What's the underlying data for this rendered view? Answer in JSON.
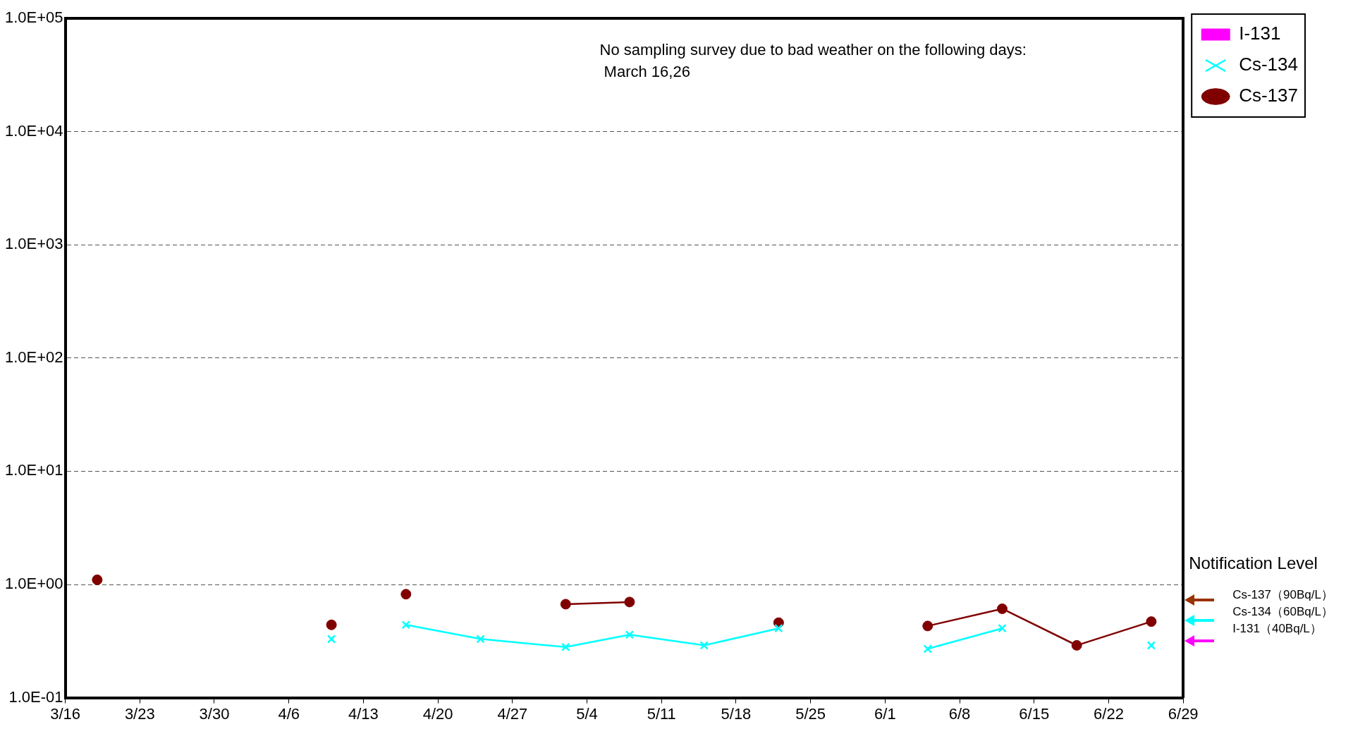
{
  "chart_data": {
    "type": "line",
    "x": [
      "--03-19",
      "--03-26",
      "--04-03",
      "--04-10",
      "--04-13",
      "--04-17",
      "--04-24",
      "--05-02",
      "--05-08",
      "--05-15",
      "--05-22",
      "--05-29",
      "--06-05",
      "--06-12",
      "--06-19",
      "--06-26"
    ],
    "series": [
      {
        "name": "I-131",
        "color": "#ff00ff",
        "marker": "square",
        "values": [
          null,
          null,
          null,
          null,
          null,
          null,
          null,
          null,
          null,
          null,
          null,
          null,
          null,
          null,
          null,
          null
        ]
      },
      {
        "name": "Cs-134",
        "color": "#00ffff",
        "marker": "cross",
        "values": [
          null,
          null,
          null,
          0.33,
          null,
          0.44,
          0.33,
          0.28,
          0.36,
          0.29,
          0.41,
          null,
          0.27,
          0.41,
          null,
          0.29
        ]
      },
      {
        "name": "Cs-137",
        "color": "#800000",
        "marker": "circle",
        "values": [
          1.1,
          null,
          null,
          0.44,
          null,
          0.82,
          null,
          0.67,
          0.7,
          null,
          0.46,
          null,
          0.43,
          0.61,
          0.29,
          0.47
        ]
      }
    ],
    "log": "y",
    "ylim": [
      0.1,
      100000
    ],
    "yticks": [
      {
        "value": 0.1,
        "label": "1.0E-01"
      },
      {
        "value": 1,
        "label": "1.0E+00"
      },
      {
        "value": 10,
        "label": "1.0E+01"
      },
      {
        "value": 100,
        "label": "1.0E+02"
      },
      {
        "value": 1000,
        "label": "1.0E+03"
      },
      {
        "value": 10000,
        "label": "1.0E+04"
      },
      {
        "value": 100000,
        "label": "1.0E+05"
      }
    ],
    "xlim": [
      "--03-16",
      "--06-29"
    ],
    "xticks": [
      {
        "value": "--03-16",
        "label": "3/16"
      },
      {
        "value": "--03-23",
        "label": "3/23"
      },
      {
        "value": "--03-30",
        "label": "3/30"
      },
      {
        "value": "--04-06",
        "label": "4/6"
      },
      {
        "value": "--04-13",
        "label": "4/13"
      },
      {
        "value": "--04-20",
        "label": "4/20"
      },
      {
        "value": "--04-27",
        "label": "4/27"
      },
      {
        "value": "--05-04",
        "label": "5/4"
      },
      {
        "value": "--05-11",
        "label": "5/11"
      },
      {
        "value": "--05-18",
        "label": "5/18"
      },
      {
        "value": "--05-25",
        "label": "5/25"
      },
      {
        "value": "--06-01",
        "label": "6/1"
      },
      {
        "value": "--06-08",
        "label": "6/8"
      },
      {
        "value": "--06-15",
        "label": "6/15"
      },
      {
        "value": "--06-22",
        "label": "6/22"
      },
      {
        "value": "--06-29",
        "label": "6/29"
      }
    ],
    "grid": "y",
    "legend": "top right",
    "annotations": [
      "No sampling survey due to bad weather on the following days:\n March 16,26",
      "Notification Level",
      "Cs-137（90Bq/L）",
      "Cs-134（60Bq/L）",
      "I-131（40Bq/L）"
    ]
  }
}
